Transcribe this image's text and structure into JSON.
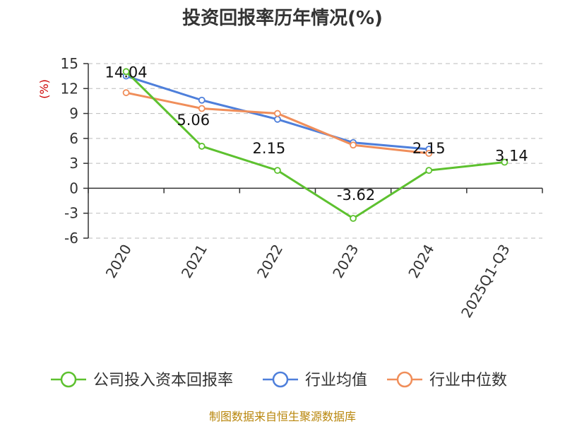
{
  "chart_data": {
    "type": "line",
    "title": "投资回报率历年情况(%)",
    "ylabel": "(%)",
    "xlabel": "",
    "categories": [
      "2020",
      "2021",
      "2022",
      "2023",
      "2024",
      "2025Q1-Q3"
    ],
    "yticks": [
      15,
      12,
      9,
      6,
      3,
      0,
      -3,
      -6
    ],
    "ylim": [
      -6,
      15
    ],
    "grid": true,
    "legend_position": "bottom",
    "series": [
      {
        "name": "公司投入资本回报率",
        "color": "#5dc12f",
        "values": [
          14.04,
          5.06,
          2.15,
          -3.62,
          2.15,
          3.14
        ],
        "labels": [
          "14.04",
          "5.06",
          "2.15",
          "-3.62",
          "2.15",
          "3.14"
        ]
      },
      {
        "name": "行业均值",
        "color": "#4e7fdb",
        "values": [
          13.5,
          10.6,
          8.3,
          5.5,
          4.7,
          null
        ]
      },
      {
        "name": "行业中位数",
        "color": "#f08e5a",
        "values": [
          11.5,
          9.6,
          9.0,
          5.2,
          4.2,
          null
        ]
      }
    ]
  },
  "source": "制图数据来自恒生聚源数据库"
}
